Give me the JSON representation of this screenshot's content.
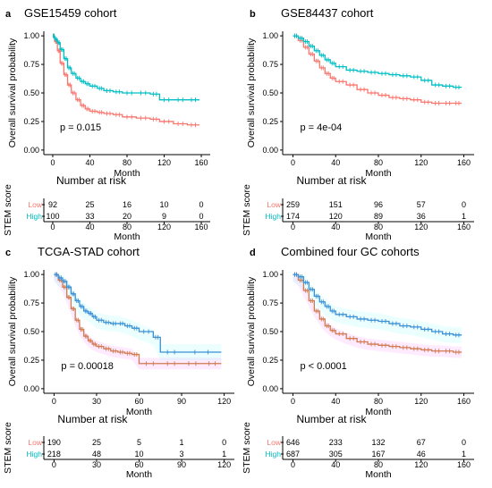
{
  "colors": {
    "low": "#F8766D",
    "high": "#00BFC4"
  },
  "chart_data": [
    {
      "type": "line",
      "panel": "a",
      "title": "GSE15459 cohort",
      "xlabel": "Month",
      "ylabel": "Overall survival probability",
      "xlim": [
        0,
        160
      ],
      "ylim": [
        0,
        1
      ],
      "xticks": [
        "0",
        "40",
        "80",
        "120",
        "160"
      ],
      "yticks": [
        "0.00",
        "0.25",
        "0.50",
        "0.75",
        "1.00"
      ],
      "pvalue": "p = 0.015",
      "series": [
        {
          "name": "Low",
          "color": "#F8766D",
          "x": [
            0,
            2,
            5,
            8,
            12,
            16,
            20,
            25,
            30,
            35,
            40,
            48,
            55,
            65,
            75,
            90,
            105,
            115,
            130,
            145,
            158
          ],
          "y": [
            1.0,
            0.95,
            0.87,
            0.76,
            0.66,
            0.57,
            0.5,
            0.44,
            0.39,
            0.36,
            0.34,
            0.33,
            0.32,
            0.31,
            0.29,
            0.28,
            0.27,
            0.25,
            0.23,
            0.22,
            0.22
          ]
        },
        {
          "name": "High",
          "color": "#00BFC4",
          "x": [
            0,
            2,
            5,
            8,
            12,
            16,
            20,
            25,
            30,
            35,
            40,
            48,
            55,
            65,
            75,
            90,
            105,
            115,
            130,
            145,
            158
          ],
          "y": [
            1.0,
            0.97,
            0.94,
            0.88,
            0.8,
            0.72,
            0.67,
            0.63,
            0.6,
            0.58,
            0.56,
            0.54,
            0.52,
            0.51,
            0.5,
            0.5,
            0.49,
            0.44,
            0.44,
            0.44,
            0.44
          ]
        }
      ],
      "risk_table": {
        "title": "Number at risk",
        "ylabel": "STEM score",
        "times": [
          "0",
          "40",
          "80",
          "120",
          "160"
        ],
        "rows": [
          {
            "group": "Low",
            "values": [
              "92",
              "25",
              "16",
              "10",
              "0"
            ]
          },
          {
            "group": "High",
            "values": [
              "100",
              "33",
              "20",
              "9",
              "0"
            ]
          }
        ]
      }
    },
    {
      "type": "line",
      "panel": "b",
      "title": "GSE84437 cohort",
      "xlabel": "Month",
      "ylabel": "Overall survival probability",
      "xlim": [
        0,
        160
      ],
      "ylim": [
        0,
        1
      ],
      "xticks": [
        "0",
        "40",
        "80",
        "120",
        "160"
      ],
      "yticks": [
        "0.00",
        "0.25",
        "0.50",
        "0.75",
        "1.00"
      ],
      "pvalue": "p = 4e-04",
      "series": [
        {
          "name": "Low",
          "color": "#F8766D",
          "x": [
            0,
            5,
            10,
            15,
            20,
            25,
            30,
            35,
            40,
            50,
            60,
            70,
            80,
            90,
            100,
            110,
            120,
            130,
            140,
            150,
            158
          ],
          "y": [
            1.0,
            0.96,
            0.9,
            0.84,
            0.78,
            0.72,
            0.67,
            0.63,
            0.6,
            0.57,
            0.53,
            0.5,
            0.48,
            0.46,
            0.45,
            0.44,
            0.42,
            0.41,
            0.41,
            0.41,
            0.41
          ]
        },
        {
          "name": "High",
          "color": "#00BFC4",
          "x": [
            0,
            5,
            10,
            15,
            20,
            25,
            30,
            35,
            40,
            50,
            60,
            70,
            80,
            90,
            100,
            110,
            120,
            130,
            140,
            150,
            158
          ],
          "y": [
            1.0,
            0.98,
            0.95,
            0.91,
            0.87,
            0.83,
            0.79,
            0.76,
            0.73,
            0.7,
            0.69,
            0.68,
            0.67,
            0.66,
            0.65,
            0.64,
            0.61,
            0.57,
            0.56,
            0.55,
            0.55
          ]
        }
      ],
      "risk_table": {
        "title": "Number at risk",
        "ylabel": "STEM score",
        "times": [
          "0",
          "40",
          "80",
          "120",
          "160"
        ],
        "rows": [
          {
            "group": "Low",
            "values": [
              "259",
              "151",
              "96",
              "57",
              "0"
            ]
          },
          {
            "group": "High",
            "values": [
              "174",
              "120",
              "89",
              "36",
              "1"
            ]
          }
        ]
      }
    },
    {
      "type": "line",
      "panel": "c",
      "title": "TCGA-STAD cohort",
      "xlabel": "Month",
      "ylabel": "Overall survival probability",
      "xlim": [
        0,
        120
      ],
      "ylim": [
        0,
        1
      ],
      "xticks": [
        "0",
        "30",
        "60",
        "90",
        "120"
      ],
      "yticks": [
        "0.00",
        "0.25",
        "0.50",
        "0.75",
        "1.00"
      ],
      "pvalue": "p = 0.00018",
      "series": [
        {
          "name": "Low",
          "color": "#F8766D",
          "x": [
            0,
            3,
            6,
            9,
            12,
            15,
            18,
            21,
            24,
            27,
            30,
            35,
            40,
            45,
            50,
            55,
            60,
            75,
            90,
            105,
            118
          ],
          "y": [
            1.0,
            0.95,
            0.89,
            0.8,
            0.7,
            0.6,
            0.52,
            0.46,
            0.42,
            0.39,
            0.37,
            0.35,
            0.33,
            0.32,
            0.31,
            0.3,
            0.22,
            0.22,
            0.22,
            0.22,
            0.22
          ]
        },
        {
          "name": "High",
          "color": "#00BFC4",
          "x": [
            0,
            3,
            6,
            9,
            12,
            15,
            18,
            21,
            24,
            27,
            30,
            35,
            40,
            45,
            50,
            55,
            60,
            70,
            75,
            90,
            118
          ],
          "y": [
            1.0,
            0.97,
            0.94,
            0.89,
            0.83,
            0.77,
            0.72,
            0.68,
            0.66,
            0.63,
            0.6,
            0.58,
            0.57,
            0.57,
            0.55,
            0.53,
            0.5,
            0.45,
            0.32,
            0.32,
            0.32
          ]
        }
      ],
      "risk_table": {
        "title": "Number at risk",
        "ylabel": "STEM score",
        "times": [
          "0",
          "30",
          "60",
          "90",
          "120"
        ],
        "rows": [
          {
            "group": "Low",
            "values": [
              "190",
              "25",
              "5",
              "1",
              "0"
            ]
          },
          {
            "group": "High",
            "values": [
              "218",
              "48",
              "10",
              "3",
              "1"
            ]
          }
        ]
      }
    },
    {
      "type": "line",
      "panel": "d",
      "title": "Combined four GC cohorts",
      "xlabel": "Month",
      "ylabel": "Overall survival probability",
      "xlim": [
        0,
        160
      ],
      "ylim": [
        0,
        1
      ],
      "xticks": [
        "0",
        "40",
        "80",
        "120",
        "160"
      ],
      "yticks": [
        "0.00",
        "0.25",
        "0.50",
        "0.75",
        "1.00"
      ],
      "pvalue": "p < 0.0001",
      "series": [
        {
          "name": "Low",
          "color": "#F8766D",
          "x": [
            0,
            5,
            10,
            15,
            20,
            25,
            30,
            35,
            40,
            50,
            60,
            70,
            80,
            90,
            100,
            110,
            120,
            130,
            140,
            150,
            158
          ],
          "y": [
            1.0,
            0.95,
            0.86,
            0.77,
            0.68,
            0.61,
            0.55,
            0.51,
            0.48,
            0.44,
            0.41,
            0.39,
            0.38,
            0.37,
            0.36,
            0.35,
            0.34,
            0.33,
            0.33,
            0.32,
            0.32
          ]
        },
        {
          "name": "High",
          "color": "#00BFC4",
          "x": [
            0,
            5,
            10,
            15,
            20,
            25,
            30,
            35,
            40,
            50,
            60,
            70,
            80,
            90,
            100,
            110,
            120,
            130,
            140,
            150,
            158
          ],
          "y": [
            1.0,
            0.98,
            0.93,
            0.87,
            0.81,
            0.76,
            0.72,
            0.68,
            0.65,
            0.63,
            0.61,
            0.6,
            0.59,
            0.57,
            0.55,
            0.54,
            0.52,
            0.5,
            0.48,
            0.47,
            0.47
          ]
        }
      ],
      "risk_table": {
        "title": "Number at risk",
        "ylabel": "STEM score",
        "times": [
          "0",
          "40",
          "80",
          "120",
          "160"
        ],
        "rows": [
          {
            "group": "Low",
            "values": [
              "646",
              "233",
              "132",
              "67",
              "0"
            ]
          },
          {
            "group": "High",
            "values": [
              "687",
              "305",
              "167",
              "46",
              "1"
            ]
          }
        ]
      }
    }
  ]
}
